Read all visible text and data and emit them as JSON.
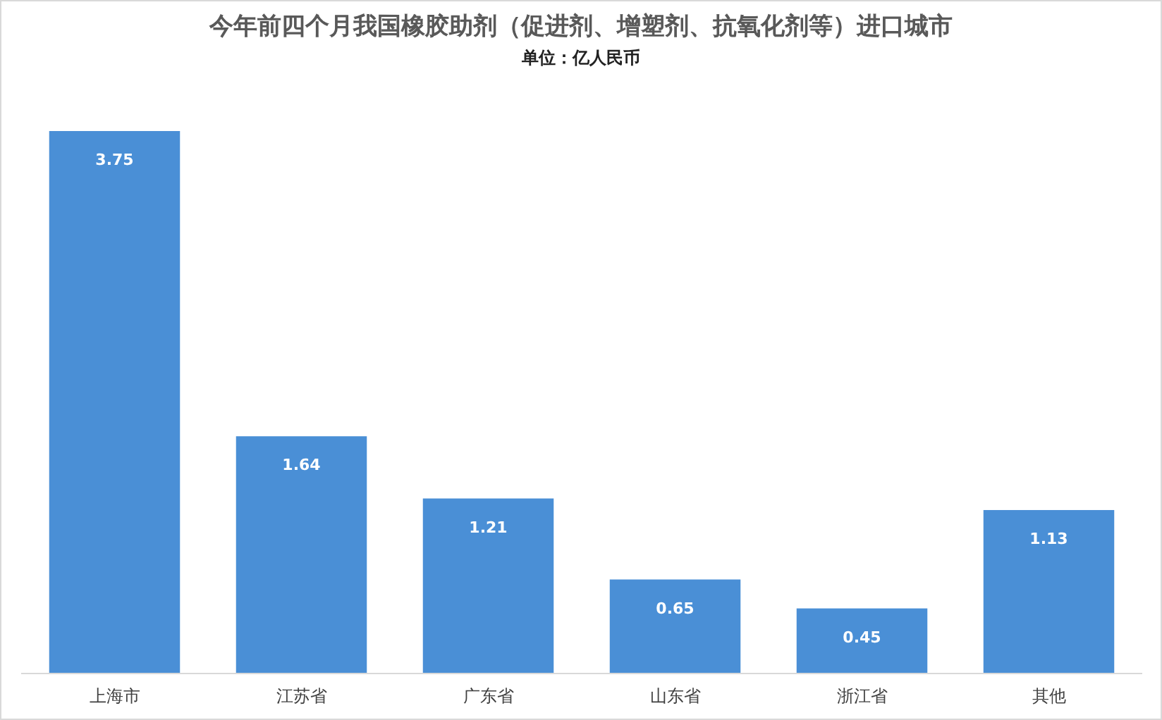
{
  "chart_data": {
    "type": "bar",
    "title": "今年前四个月我国橡胶助剂（促进剂、增塑剂、抗氧化剂等）进口城市",
    "subtitle": "单位：亿人民币",
    "categories": [
      "上海市",
      "江苏省",
      "广东省",
      "山东省",
      "浙江省",
      "其他"
    ],
    "values": [
      3.75,
      1.64,
      1.21,
      0.65,
      0.45,
      1.13
    ],
    "color": "#4a8fd6",
    "data_labels": true
  }
}
